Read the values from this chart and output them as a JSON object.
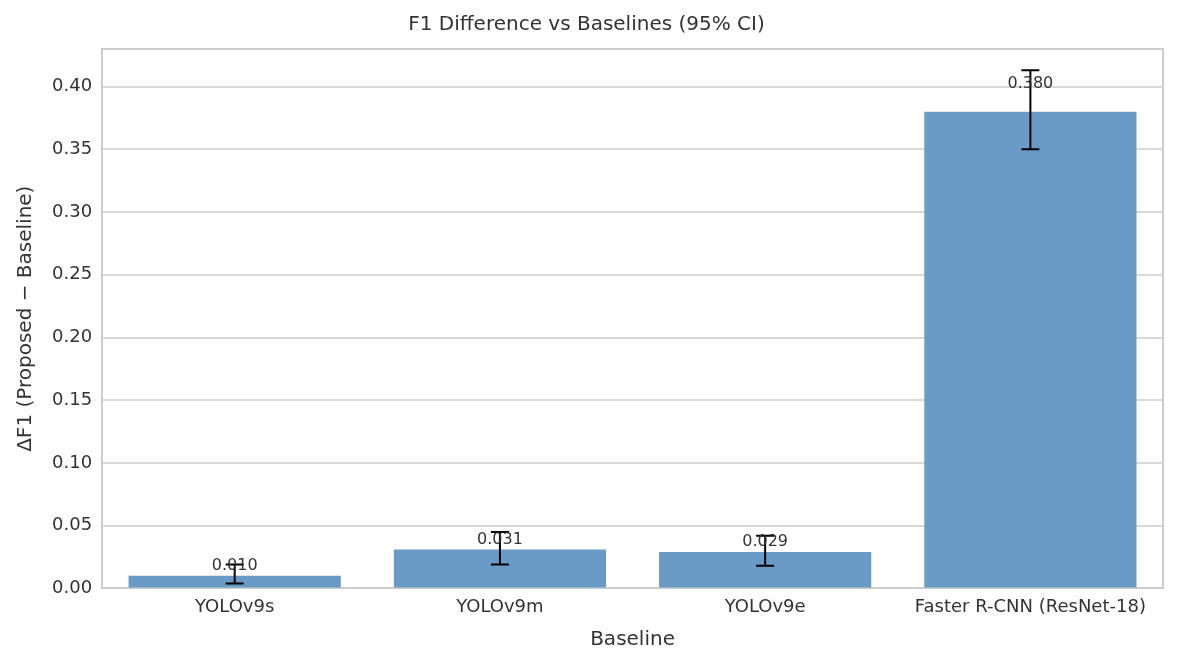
{
  "chart_data": {
    "type": "bar",
    "title": "F1 Difference vs Baselines (95% CI)",
    "xlabel": "Baseline",
    "ylabel": "ΔF1 (Proposed − Baseline)",
    "categories": [
      "YOLOv9s",
      "YOLOv9m",
      "YOLOv9e",
      "Faster R-CNN (ResNet-18)"
    ],
    "values": [
      0.01,
      0.031,
      0.029,
      0.38
    ],
    "color": "#6a9bc7",
    "errors": [
      [
        0.004,
        0.019
      ],
      [
        0.019,
        0.045
      ],
      [
        0.018,
        0.042
      ],
      [
        0.35,
        0.413
      ]
    ],
    "value_labels": [
      "0.010",
      "0.031",
      "0.029",
      "0.380"
    ],
    "ylim": [
      0,
      0.43
    ],
    "yticks": [
      {
        "value": 0,
        "label": "0.00"
      },
      {
        "value": 0.05,
        "label": "0.05"
      },
      {
        "value": 0.1,
        "label": "0.10"
      },
      {
        "value": 0.15,
        "label": "0.15"
      },
      {
        "value": 0.2,
        "label": "0.20"
      },
      {
        "value": 0.25,
        "label": "0.25"
      },
      {
        "value": 0.3,
        "label": "0.30"
      },
      {
        "value": 0.35,
        "label": "0.35"
      },
      {
        "value": 0.4,
        "label": "0.40"
      }
    ],
    "grid": "y",
    "legend": false
  }
}
